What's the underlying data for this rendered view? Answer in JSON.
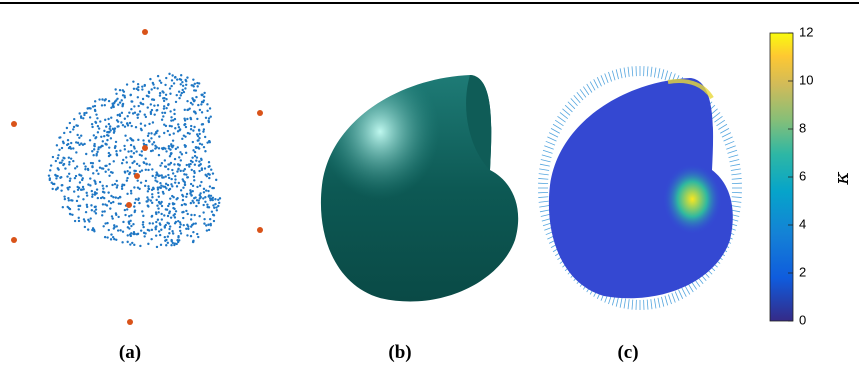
{
  "panels": [
    {
      "label": "(a)"
    },
    {
      "label": "(b)"
    },
    {
      "label": "(c)"
    }
  ],
  "colorbar": {
    "label": "κ",
    "lim": [
      0,
      12
    ],
    "ticks": [
      0,
      2,
      4,
      6,
      8,
      10,
      12
    ]
  }
}
